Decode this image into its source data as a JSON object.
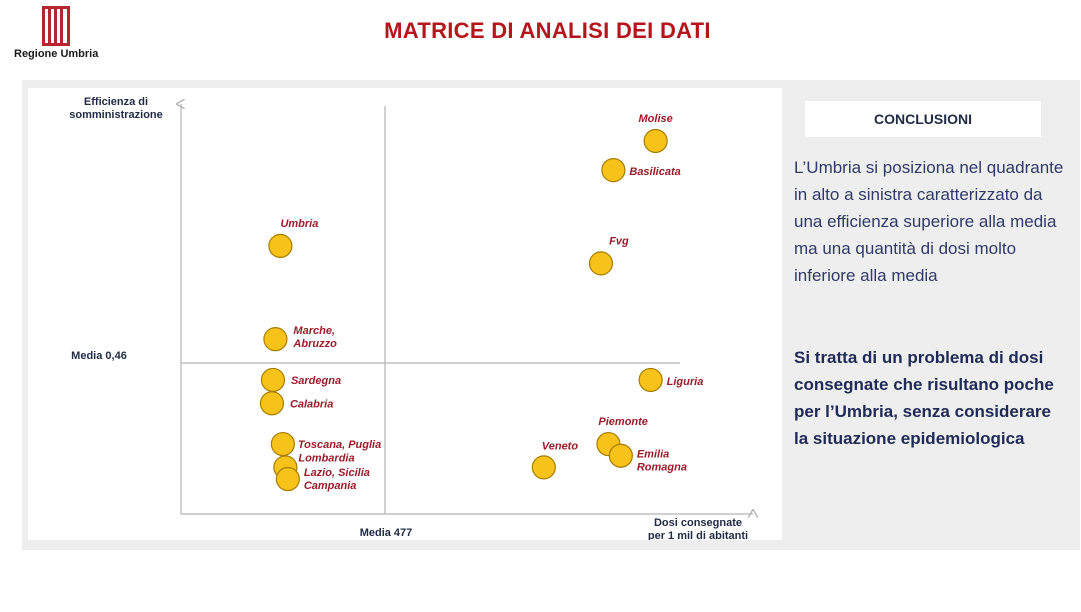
{
  "header": {
    "logo_text": "Regione Umbria",
    "title": "MATRICE DI ANALISI DEI DATI"
  },
  "colors": {
    "title": "#b5161c",
    "bubble_fill": "#f7c21a",
    "bubble_stroke": "#a77d00",
    "region_label": "#9b1c2a"
  },
  "chart_data": {
    "type": "scatter",
    "ylabel": [
      "Efficienza di",
      "somministrazione"
    ],
    "xlabel": [
      "Dosi consegnate",
      "per 1 mil di abitanti"
    ],
    "x_mean_label": "Media 477",
    "y_mean_label": "Media 0,46",
    "points": [
      {
        "label": [
          "Molise"
        ],
        "x": 955,
        "y": 0.84
      },
      {
        "label": [
          "Basilicata"
        ],
        "x": 870,
        "y": 0.79
      },
      {
        "label": [
          "Fvg"
        ],
        "x": 845,
        "y": 0.63
      },
      {
        "label": [
          "Umbria"
        ],
        "x": 200,
        "y": 0.66
      },
      {
        "label": [
          "Marche,",
          "Abruzzo"
        ],
        "x": 190,
        "y": 0.5
      },
      {
        "label": [
          "Liguria"
        ],
        "x": 945,
        "y": 0.43
      },
      {
        "label": [
          "Sardegna"
        ],
        "x": 185,
        "y": 0.43
      },
      {
        "label": [
          "Calabria"
        ],
        "x": 183,
        "y": 0.39
      },
      {
        "label": [
          "Piemonte"
        ],
        "x": 860,
        "y": 0.32
      },
      {
        "label": [
          "Emilia",
          "Romagna"
        ],
        "x": 885,
        "y": 0.3
      },
      {
        "label": [
          "Toscana, Puglia"
        ],
        "x": 205,
        "y": 0.32
      },
      {
        "label": [
          "Veneto"
        ],
        "x": 730,
        "y": 0.28
      },
      {
        "label": [
          "Lombardia"
        ],
        "x": 210,
        "y": 0.28
      },
      {
        "label": [
          "Lazio, Sicilia",
          "Campania"
        ],
        "x": 215,
        "y": 0.26
      }
    ]
  },
  "conclusions": {
    "title": "CONCLUSIONI",
    "paragraph_1": "L’Umbria si posiziona nel quadrante in alto a sinistra caratterizzato da una efficienza superiore alla media ma una quantità di dosi molto inferiore alla media",
    "paragraph_2": "Si tratta di un problema di dosi consegnate che risultano poche per l’Umbria, senza considerare la situazione epidemiologica"
  }
}
